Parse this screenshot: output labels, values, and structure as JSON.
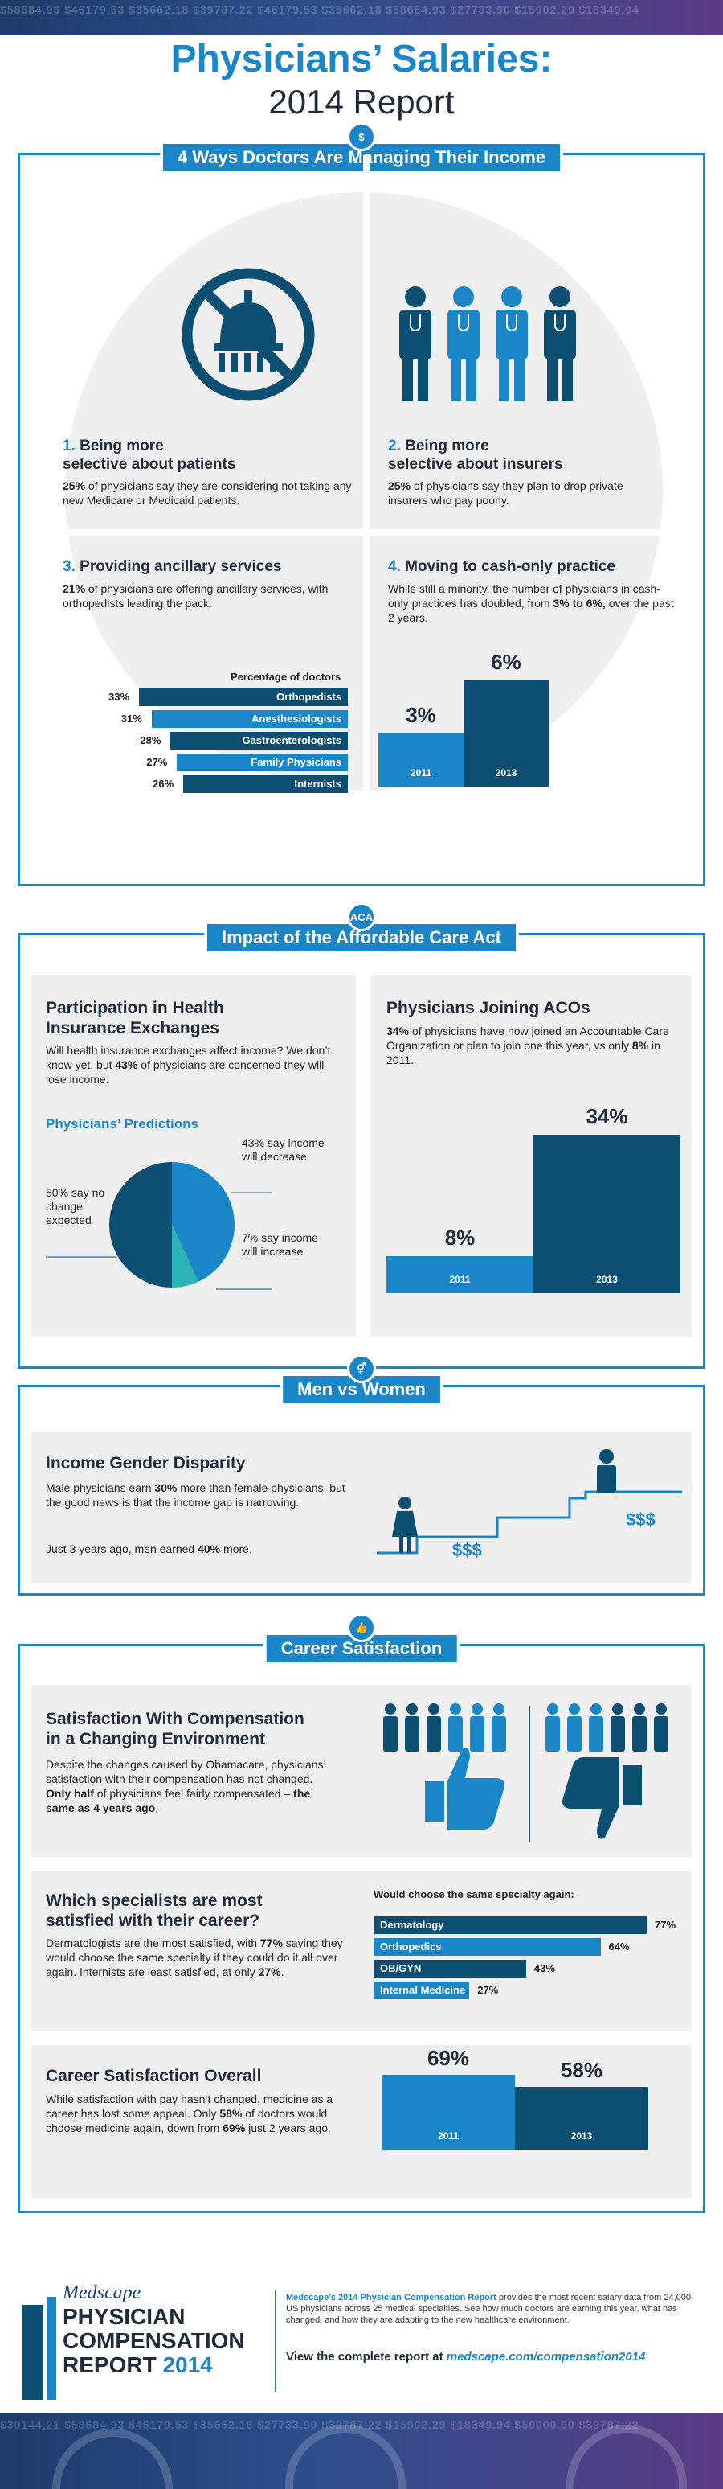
{
  "top_band_numbers": "$58684.93  $46179.53  $35662.18  $39787.22  $46179.53  $35662.18  $58684.93  $27733.90  $15902.29  $18349.94",
  "title": {
    "line1": "Physicians’ Salaries:",
    "line2": "2014 Report"
  },
  "colors": {
    "blue": "#1a86c7",
    "navy": "#0d4f73",
    "darknavy": "#1f2a3a",
    "gray": "#efefef"
  },
  "section1": {
    "badge": "$",
    "heading": "4 Ways Doctors Are Managing Their Income",
    "q1": {
      "num": "1.",
      "title_a": "Being more",
      "title_b": "selective about patients",
      "text_bold": "25%",
      "text": " of physicians say they are considering not taking any new Medicare or Medicaid patients."
    },
    "q2": {
      "num": "2.",
      "title_a": "Being more",
      "title_b": "selective about insurers",
      "text_bold": "25%",
      "text": " of physicians say they plan to drop private insurers who pay poorly."
    },
    "q3": {
      "num": "3.",
      "title": "Providing ancillary services",
      "text_bold": "21%",
      "text": " of physicians are offering ancillary services, with orthopedists leading the pack.",
      "chart_title": "Percentage of doctors"
    },
    "q4": {
      "num": "4.",
      "title": "Moving to cash-only practice",
      "text": "While still a minority, the number of physicians in cash-only practices has doubled, from ",
      "text_b1": "3% to 6%,",
      "text2": " over the past 2 years."
    }
  },
  "section2": {
    "badge": "ACA",
    "heading": "Impact of the Affordable Care Act",
    "left": {
      "title_a": "Participation in Health",
      "title_b": "Insurance Exchanges",
      "text": "Will health insurance exchanges affect income? We don’t know yet, but ",
      "text_bold": "43%",
      "text2": " of physicians are concerned they will lose income.",
      "predictions_title": "Physicians’ Predictions"
    },
    "right": {
      "title": "Physicians Joining ACOs",
      "text_bold": "34%",
      "text": " of physicians have now joined an Accountable Care Organization or plan to join one this year, vs only ",
      "text_bold2": "8%",
      "text2": " in 2011."
    }
  },
  "section3": {
    "badge": "⚥",
    "heading": "Men vs Women",
    "title": "Income Gender Disparity",
    "text": "Male physicians earn ",
    "text_bold": "30%",
    "text2": " more than female physicians, but the good news is that the income gap is narrowing.",
    "text3": "Just 3 years ago, men earned ",
    "text3_bold": "40%",
    "text3_end": " more.",
    "dollar_low": "$$$",
    "dollar_high": "$$$"
  },
  "section4": {
    "badge": "👍",
    "heading": "Career Satisfaction",
    "sat": {
      "title_a": "Satisfaction With Compensation",
      "title_b": "in a Changing Environment",
      "text": "Despite the changes caused by Obamacare, physicians’ satisfaction with their compensation has not changed. ",
      "text_bold": "Only half",
      "text2": " of physicians feel fairly compensated – ",
      "text_bold2": "the same as 4 years ago",
      "text3": "."
    },
    "spec": {
      "title_a": "Which specialists are most",
      "title_b": "satisfied with their career?",
      "text": "Dermatologists are the most satisfied, with ",
      "text_bold": "77%",
      "text2": " saying they would choose the same specialty if they could do it all over again. Internists are least satisfied, at only ",
      "text_bold2": "27%",
      "text3": ".",
      "chart_title": "Would choose the same specialty again:"
    },
    "overall": {
      "title": "Career Satisfaction Overall",
      "text": "While satisfaction with pay hasn’t changed, medicine as a career has lost some appeal. Only ",
      "text_bold": "58%",
      "text2": " of doctors would choose medicine again, down from ",
      "text_bold2": "69%",
      "text3": " just 2 years ago."
    }
  },
  "footer": {
    "brand": "Medscape",
    "line1": "PHYSICIAN",
    "line2": "COMPENSATION",
    "line3": "REPORT",
    "year": "2014",
    "desc_bold": "Medscape’s 2014 Physician Compensation Report",
    "desc": " provides the most recent salary data from 24,000 US physicians across 25 medical specialties. See how much doctors are earning this year, what has changed, and how they are adapting to the new healthcare environment.",
    "cta": "View the complete report at ",
    "cta_link": "medscape.com/compensation2014",
    "bottom_numbers": "$30144.21  $58684.93  $46179.53  $35662.18  $27733.90  $39787.22  $15902.29  $18349.94  $50000.00  $39787.22"
  },
  "chart_data": [
    {
      "type": "bar",
      "title": "Percentage of doctors",
      "categories": [
        "Orthopedists",
        "Anesthesiologists",
        "Gastroenterologists",
        "Family Physicians",
        "Internists"
      ],
      "values": [
        33,
        31,
        28,
        27,
        26
      ],
      "value_labels": [
        "33%",
        "31%",
        "28%",
        "27%",
        "26%"
      ],
      "orientation": "horizontal"
    },
    {
      "type": "bar",
      "categories": [
        "2011",
        "2013"
      ],
      "values": [
        3,
        6
      ],
      "value_labels": [
        "3%",
        "6%"
      ]
    },
    {
      "type": "pie",
      "categories": [
        "50% say no change expected",
        "43% say income will decrease",
        "7% say income will increase"
      ],
      "values": [
        50,
        43,
        7
      ]
    },
    {
      "type": "bar",
      "categories": [
        "2011",
        "2013"
      ],
      "values": [
        8,
        34
      ],
      "value_labels": [
        "8%",
        "34%"
      ]
    },
    {
      "type": "bar",
      "title": "Would choose the same specialty again:",
      "categories": [
        "Dermatology",
        "Orthopedics",
        "OB/GYN",
        "Internal Medicine"
      ],
      "values": [
        77,
        64,
        43,
        27
      ],
      "value_labels": [
        "77%",
        "64%",
        "43%",
        "27%"
      ],
      "orientation": "horizontal"
    },
    {
      "type": "bar",
      "categories": [
        "2011",
        "2013"
      ],
      "values": [
        69,
        58
      ],
      "value_labels": [
        "69%",
        "58%"
      ]
    }
  ]
}
